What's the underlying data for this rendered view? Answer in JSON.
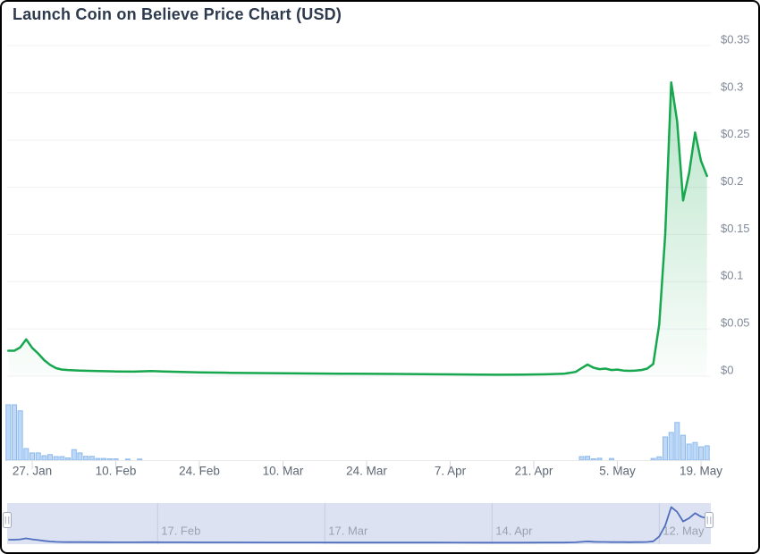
{
  "title": "Launch Coin on Believe Price Chart (USD)",
  "colors": {
    "title_text": "#2d3a4d",
    "price_line": "#17a74e",
    "price_fill_top": "rgba(23,167,78,0.30)",
    "price_fill_bottom": "rgba(23,167,78,0.02)",
    "volume_fill": "#bed9f8",
    "volume_stroke": "#8cb8ec",
    "gridline": "#f0f1f3",
    "axis_line": "#e7e8ea",
    "axis_tick": "#d5d8dc",
    "x_label": "#5d6773",
    "y_label": "#808a99",
    "nav_background": "#dce2f1",
    "nav_line": "#4f6fbe",
    "nav_gridline": "#c6cce0",
    "nav_label": "#9aa1b0",
    "handle_fill": "#ffffff",
    "handle_border": "#a3abbf"
  },
  "chart_data": {
    "type": "line",
    "title": "Launch Coin on Believe Price Chart (USD)",
    "currency": "USD",
    "legend": "none",
    "grid": "horizontal",
    "y_axis": {
      "position": "right",
      "min": 0,
      "max": 0.35,
      "tick_interval": 0.05,
      "values": [
        0,
        0.05,
        0.1,
        0.15,
        0.2,
        0.25,
        0.3,
        0.35
      ],
      "labels": [
        "$0",
        "$0.05",
        "$0.1",
        "$0.15",
        "$0.2",
        "$0.25",
        "$0.3",
        "$0.35"
      ]
    },
    "x_axis": {
      "ticks": [
        {
          "label": "27. Jan"
        },
        {
          "label": "10. Feb"
        },
        {
          "label": "24. Feb"
        },
        {
          "label": "10. Mar"
        },
        {
          "label": "24. Mar"
        },
        {
          "label": "7. Apr"
        },
        {
          "label": "21. Apr"
        },
        {
          "label": "5. May"
        },
        {
          "label": "19. May"
        }
      ]
    },
    "price_series_usd": [
      {
        "date": "23. Jan",
        "v": 0.027
      },
      {
        "date": "24. Jan",
        "v": 0.027
      },
      {
        "date": "25. Jan",
        "v": 0.0305
      },
      {
        "date": "26. Jan",
        "v": 0.039
      },
      {
        "date": "27. Jan",
        "v": 0.03
      },
      {
        "date": "28. Jan",
        "v": 0.024
      },
      {
        "date": "29. Jan",
        "v": 0.017
      },
      {
        "date": "30. Jan",
        "v": 0.012
      },
      {
        "date": "31. Jan",
        "v": 0.0085
      },
      {
        "date": "1. Feb",
        "v": 0.007
      },
      {
        "date": "2. Feb",
        "v": 0.0065
      },
      {
        "date": "4. Feb",
        "v": 0.006
      },
      {
        "date": "7. Feb",
        "v": 0.0055
      },
      {
        "date": "10. Feb",
        "v": 0.005
      },
      {
        "date": "13. Feb",
        "v": 0.0048
      },
      {
        "date": "16. Feb",
        "v": 0.0055
      },
      {
        "date": "18. Feb",
        "v": 0.005
      },
      {
        "date": "21. Feb",
        "v": 0.0045
      },
      {
        "date": "24. Feb",
        "v": 0.004
      },
      {
        "date": "1. Mar",
        "v": 0.0036
      },
      {
        "date": "8. Mar",
        "v": 0.0032
      },
      {
        "date": "15. Mar",
        "v": 0.0028
      },
      {
        "date": "22. Mar",
        "v": 0.0026
      },
      {
        "date": "29. Mar",
        "v": 0.0024
      },
      {
        "date": "5. Apr",
        "v": 0.002
      },
      {
        "date": "12. Apr",
        "v": 0.0017
      },
      {
        "date": "15. Apr",
        "v": 0.0015
      },
      {
        "date": "19. Apr",
        "v": 0.0017
      },
      {
        "date": "23. Apr",
        "v": 0.002
      },
      {
        "date": "26. Apr",
        "v": 0.0026
      },
      {
        "date": "28. Apr",
        "v": 0.0045
      },
      {
        "date": "29. Apr",
        "v": 0.0085
      },
      {
        "date": "30. Apr",
        "v": 0.0123
      },
      {
        "date": "1. May",
        "v": 0.009
      },
      {
        "date": "2. May",
        "v": 0.0075
      },
      {
        "date": "3. May",
        "v": 0.008
      },
      {
        "date": "4. May",
        "v": 0.0065
      },
      {
        "date": "5. May",
        "v": 0.007
      },
      {
        "date": "6. May",
        "v": 0.006
      },
      {
        "date": "7. May",
        "v": 0.0057
      },
      {
        "date": "8. May",
        "v": 0.006
      },
      {
        "date": "9. May",
        "v": 0.0065
      },
      {
        "date": "10. May",
        "v": 0.008
      },
      {
        "date": "11. May",
        "v": 0.013
      },
      {
        "date": "12. May",
        "v": 0.055
      },
      {
        "date": "13. May",
        "v": 0.15
      },
      {
        "date": "14. May",
        "v": 0.311
      },
      {
        "date": "15. May",
        "v": 0.27
      },
      {
        "date": "16. May",
        "v": 0.186
      },
      {
        "date": "17. May",
        "v": 0.215
      },
      {
        "date": "18. May",
        "v": 0.258
      },
      {
        "date": "19. May",
        "v": 0.228
      },
      {
        "date": "20. May",
        "v": 0.212
      }
    ],
    "volume_series_relative": {
      "note": "bar heights relative to max daily volume; no numeric volume axis shown",
      "points": [
        {
          "date": "23. Jan",
          "v": 1.0
        },
        {
          "date": "24. Jan",
          "v": 1.0
        },
        {
          "date": "25. Jan",
          "v": 0.89
        },
        {
          "date": "26. Jan",
          "v": 0.21
        },
        {
          "date": "27. Jan",
          "v": 0.13
        },
        {
          "date": "28. Jan",
          "v": 0.13
        },
        {
          "date": "29. Jan",
          "v": 0.08
        },
        {
          "date": "30. Jan",
          "v": 0.1
        },
        {
          "date": "31. Jan",
          "v": 0.065
        },
        {
          "date": "1. Feb",
          "v": 0.065
        },
        {
          "date": "2. Feb",
          "v": 0.04
        },
        {
          "date": "3. Feb",
          "v": 0.19
        },
        {
          "date": "4. Feb",
          "v": 0.13
        },
        {
          "date": "5. Feb",
          "v": 0.07
        },
        {
          "date": "6. Feb",
          "v": 0.07
        },
        {
          "date": "7. Feb",
          "v": 0.03
        },
        {
          "date": "8. Feb",
          "v": 0.03
        },
        {
          "date": "9. Feb",
          "v": 0.025
        },
        {
          "date": "10. Feb",
          "v": 0.025
        },
        {
          "date": "12. Feb",
          "v": 0.016
        },
        {
          "date": "14. Feb",
          "v": 0.016
        },
        {
          "date": "29. Apr",
          "v": 0.065
        },
        {
          "date": "30. Apr",
          "v": 0.07
        },
        {
          "date": "1. May",
          "v": 0.025
        },
        {
          "date": "2. May",
          "v": 0.035
        },
        {
          "date": "4. May",
          "v": 0.03
        },
        {
          "date": "11. May",
          "v": 0.03
        },
        {
          "date": "12. May",
          "v": 0.06
        },
        {
          "date": "13. May",
          "v": 0.42
        },
        {
          "date": "14. May",
          "v": 0.5
        },
        {
          "date": "15. May",
          "v": 0.68
        },
        {
          "date": "16. May",
          "v": 0.45
        },
        {
          "date": "17. May",
          "v": 0.29
        },
        {
          "date": "18. May",
          "v": 0.32
        },
        {
          "date": "19. May",
          "v": 0.24
        },
        {
          "date": "20. May",
          "v": 0.26
        }
      ]
    },
    "navigator": {
      "range_selected": "full",
      "ticks": [
        {
          "label": "17. Feb"
        },
        {
          "label": "17. Mar"
        },
        {
          "label": "14. Apr"
        },
        {
          "label": "12. May"
        }
      ]
    }
  }
}
